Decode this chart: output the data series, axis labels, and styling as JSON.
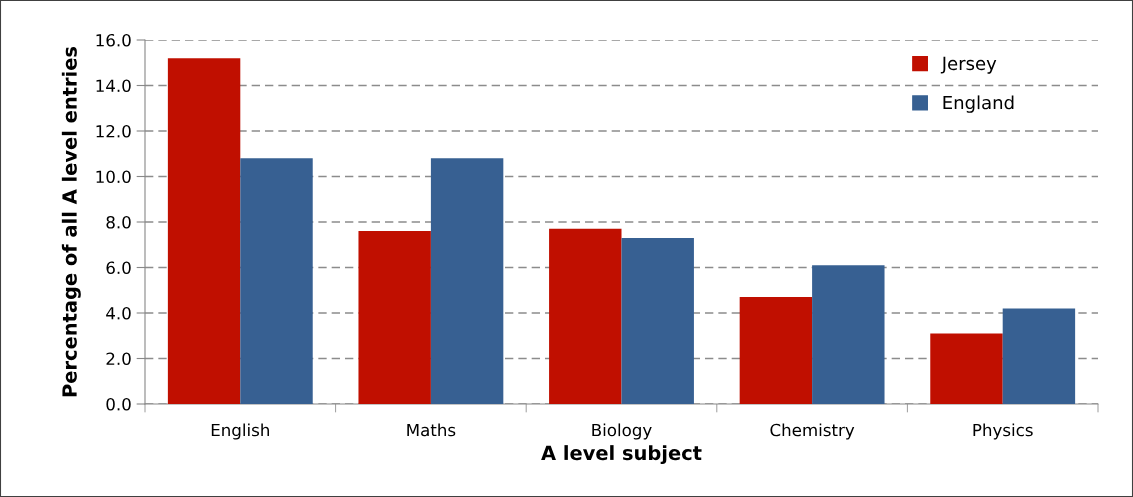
{
  "chart_data": {
    "type": "bar",
    "xlabel": "A level subject",
    "ylabel": "Percentage of all A level entries",
    "categories": [
      "English",
      "Maths",
      "Biology",
      "Chemistry",
      "Physics"
    ],
    "series": [
      {
        "name": "Jersey",
        "color": "#c00f00",
        "values": [
          15.2,
          7.6,
          7.7,
          4.7,
          3.1
        ]
      },
      {
        "name": "England",
        "color": "#376092",
        "values": [
          10.8,
          10.8,
          7.3,
          6.1,
          4.2
        ]
      }
    ],
    "ylim": [
      0,
      16
    ],
    "yticks": [
      {
        "value": 0,
        "label": "0.0"
      },
      {
        "value": 2,
        "label": "2.0"
      },
      {
        "value": 4,
        "label": "4.0"
      },
      {
        "value": 6,
        "label": "6.0"
      },
      {
        "value": 8,
        "label": "8.0"
      },
      {
        "value": 10,
        "label": "10.0"
      },
      {
        "value": 12,
        "label": "12.0"
      },
      {
        "value": 14,
        "label": "14.0"
      },
      {
        "value": 16,
        "label": "16.0"
      }
    ],
    "grid": "y",
    "legend": "top right"
  }
}
